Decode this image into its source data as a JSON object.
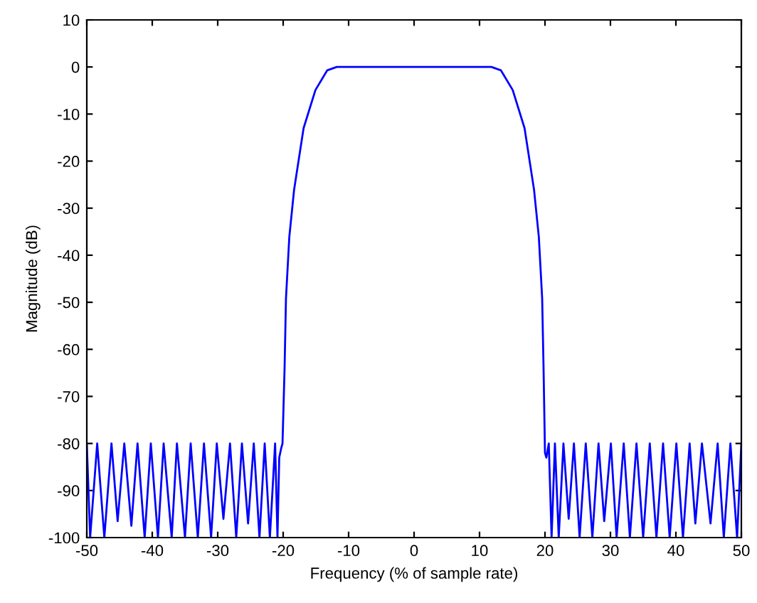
{
  "chart_data": {
    "type": "line",
    "xlabel": "Frequency (% of sample rate)",
    "ylabel": "Magnitude (dB)",
    "xlim": [
      -50,
      50
    ],
    "ylim": [
      -100,
      10
    ],
    "xticks": [
      -50,
      -40,
      -30,
      -20,
      -10,
      0,
      10,
      20,
      30,
      40,
      50
    ],
    "yticks": [
      -100,
      -90,
      -80,
      -70,
      -60,
      -50,
      -40,
      -30,
      -20,
      -10,
      0,
      10
    ],
    "grid": false,
    "legend": false,
    "marker": "none",
    "line_style": "solid",
    "series": [
      {
        "color": "#0000ff",
        "x": [
          -50.0,
          -49.49,
          -48.41,
          -47.32,
          -46.23,
          -45.29,
          -44.27,
          -43.19,
          -42.25,
          -41.16,
          -40.22,
          -39.13,
          -38.26,
          -37.03,
          -36.23,
          -35.0,
          -34.13,
          -33.04,
          -32.1,
          -31.01,
          -30.14,
          -29.13,
          -28.12,
          -27.17,
          -26.3,
          -25.36,
          -24.49,
          -23.62,
          -22.82,
          -22.03,
          -21.23,
          -20.87,
          -20.6,
          -20.3,
          -20.1,
          -19.78,
          -19.57,
          -19.06,
          -18.33,
          -16.88,
          -15.07,
          -13.26,
          -11.81,
          11.81,
          13.26,
          15.07,
          16.88,
          18.33,
          19.06,
          19.57,
          19.78,
          20.0,
          20.21,
          20.58,
          21.01,
          21.52,
          22.1,
          22.82,
          23.62,
          24.42,
          25.29,
          26.23,
          27.24,
          28.18,
          29.05,
          30.07,
          30.94,
          32.03,
          32.97,
          33.98,
          35.0,
          36.01,
          37.03,
          38.04,
          39.05,
          40.07,
          41.08,
          42.1,
          42.97,
          43.98,
          45.29,
          46.38,
          47.32,
          48.33,
          49.35,
          50.0
        ],
        "values": [
          -80,
          -100,
          -80,
          -100,
          -80,
          -96.5,
          -80,
          -97.5,
          -80,
          -100,
          -80,
          -100,
          -80,
          -100,
          -80,
          -100,
          -80,
          -100,
          -80,
          -100,
          -80,
          -96,
          -80,
          -100,
          -80,
          -97,
          -80,
          -100,
          -80,
          -100,
          -80,
          -100,
          -83,
          -81,
          -80,
          -63.8,
          -49.2,
          -36.1,
          -26.1,
          -13.0,
          -4.9,
          -0.7,
          0,
          0,
          -0.7,
          -4.9,
          -13.0,
          -26.1,
          -36.1,
          -49.2,
          -63.8,
          -82,
          -83,
          -80,
          -100,
          -80,
          -100,
          -80,
          -96,
          -80,
          -100,
          -80,
          -100,
          -80,
          -96.5,
          -80,
          -100,
          -80,
          -100,
          -80,
          -100,
          -80,
          -100,
          -80,
          -100,
          -80,
          -100,
          -80,
          -97,
          -80,
          -97,
          -80,
          -100,
          -80,
          -100,
          -80
        ]
      }
    ]
  }
}
